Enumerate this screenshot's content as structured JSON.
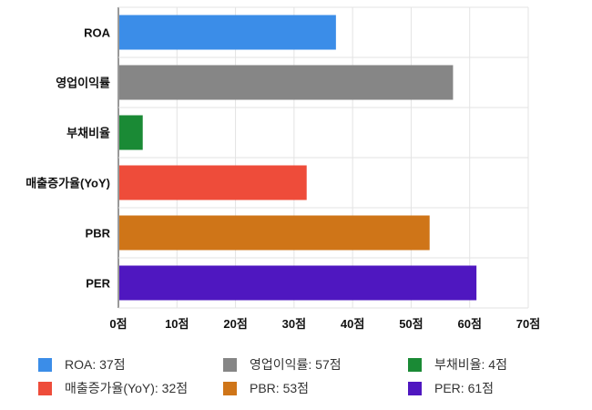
{
  "chart_data": {
    "type": "bar",
    "orientation": "horizontal",
    "categories": [
      "ROA",
      "영업이익률",
      "부채비율",
      "매출증가율(YoY)",
      "PBR",
      "PER"
    ],
    "values": [
      37,
      57,
      4,
      32,
      53,
      61
    ],
    "colors": [
      "#3b8de8",
      "#868686",
      "#1a8a35",
      "#ee4c3a",
      "#cf7518",
      "#4f17c0"
    ],
    "xlim": [
      0,
      70
    ],
    "x_ticks": [
      "0점",
      "10점",
      "20점",
      "30점",
      "40점",
      "50점",
      "60점",
      "70점"
    ],
    "grid": true,
    "legend_position": "bottom",
    "legend": [
      "ROA: 37점",
      "영업이익률: 57점",
      "부채비율: 4점",
      "매출증가율(YoY): 32점",
      "PBR: 53점",
      "PER: 61점"
    ]
  }
}
